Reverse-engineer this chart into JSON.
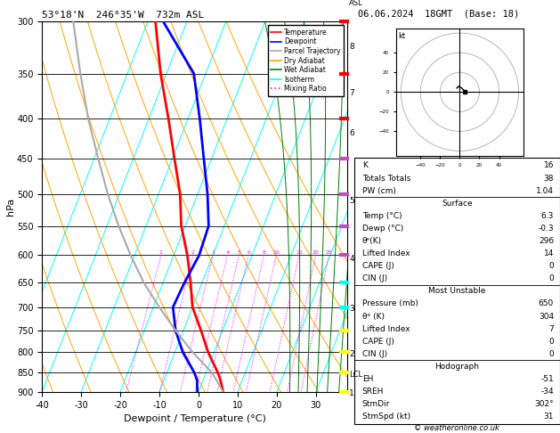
{
  "title_left": "53°18'N  246°35'W  732m ASL",
  "title_right": "06.06.2024  18GMT  (Base: 18)",
  "xlabel": "Dewpoint / Temperature (°C)",
  "pmin": 300,
  "pmax": 900,
  "Tmin": -40,
  "Tmax": 38,
  "skew_factor": 37.0,
  "pressure_levels": [
    300,
    350,
    400,
    450,
    500,
    550,
    600,
    650,
    700,
    750,
    800,
    850,
    900
  ],
  "temp_profile_p": [
    900,
    870,
    850,
    800,
    750,
    700,
    650,
    600,
    550,
    500,
    450,
    400,
    350,
    300
  ],
  "temp_profile_T": [
    6.3,
    4.5,
    3.0,
    -1.5,
    -5.5,
    -10.0,
    -13.0,
    -16.5,
    -21.0,
    -24.5,
    -29.5,
    -35.0,
    -41.5,
    -48.0
  ],
  "dewp_profile_p": [
    900,
    870,
    850,
    800,
    750,
    700,
    650,
    600,
    550,
    500,
    450,
    400,
    350,
    300
  ],
  "dewp_profile_T": [
    -0.3,
    -1.5,
    -3.0,
    -8.0,
    -12.0,
    -15.0,
    -14.5,
    -13.5,
    -14.0,
    -17.5,
    -22.0,
    -27.0,
    -33.0,
    -46.0
  ],
  "parcel_profile_p": [
    900,
    870,
    855,
    850,
    800,
    750,
    700,
    650,
    600,
    550,
    500,
    450,
    400,
    350,
    300
  ],
  "parcel_profile_T": [
    6.3,
    3.5,
    2.0,
    1.5,
    -5.5,
    -12.0,
    -18.5,
    -25.0,
    -31.0,
    -37.0,
    -43.0,
    -49.0,
    -55.5,
    -62.0,
    -69.0
  ],
  "lcl_pressure": 855,
  "km_pressures": [
    905,
    805,
    703,
    606,
    511,
    418,
    371,
    323
  ],
  "km_values": [
    1,
    2,
    3,
    4,
    5,
    6,
    7,
    8
  ],
  "mixing_ratios": [
    1,
    2,
    3,
    4,
    5,
    6,
    8,
    10,
    15,
    20,
    25
  ],
  "isotherm_temps_range": [
    -50,
    50,
    10
  ],
  "dry_adiabat_T0_range": [
    -40,
    80,
    10
  ],
  "wet_adiabat_T0_range": [
    -20,
    45,
    5
  ],
  "isotherm_color": "cyan",
  "dry_adiabat_color": "orange",
  "wet_adiabat_color": "green",
  "mixing_ratio_color": "magenta",
  "temp_color": "red",
  "dewp_color": "blue",
  "parcel_color": "#aaaaaa",
  "info_K": "16",
  "info_TT": "38",
  "info_PW": "1.04",
  "surf_temp": "6.3",
  "surf_dewp": "-0.3",
  "surf_thetae": "296",
  "surf_li": "14",
  "surf_cape": "0",
  "surf_cin": "0",
  "mu_pres": "650",
  "mu_thetae": "304",
  "mu_li": "7",
  "mu_cape": "0",
  "mu_cin": "0",
  "hodo_EH": "-51",
  "hodo_SREH": "-34",
  "hodo_StmDir": "302°",
  "hodo_StmSpd": "31",
  "legend_labels": [
    "Temperature",
    "Dewpoint",
    "Parcel Trajectory",
    "Dry Adiabat",
    "Wet Adiabat",
    "Isotherm",
    "Mixing Ratio"
  ],
  "legend_colors": [
    "red",
    "blue",
    "#aaaaaa",
    "orange",
    "green",
    "cyan",
    "magenta"
  ],
  "legend_styles": [
    "-",
    "-",
    "-",
    "-",
    "-",
    "-",
    ":"
  ]
}
